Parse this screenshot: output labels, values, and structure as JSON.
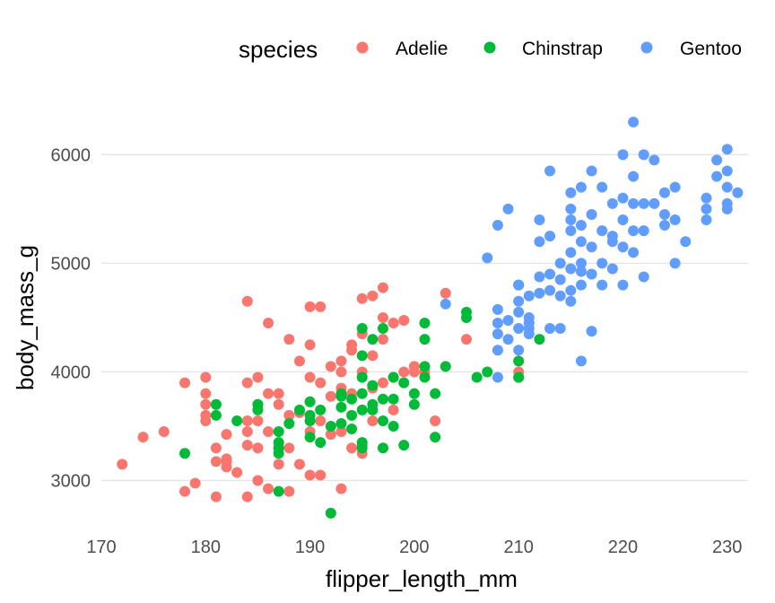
{
  "chart_data": {
    "type": "scatter",
    "title": "",
    "xlabel": "flipper_length_mm",
    "ylabel": "body_mass_g",
    "xlim": [
      170,
      232
    ],
    "ylim": [
      2550,
      6350
    ],
    "x_ticks": [
      170,
      180,
      190,
      200,
      210,
      220,
      230
    ],
    "y_ticks": [
      3000,
      4000,
      5000,
      6000
    ],
    "grid": "horizontal-major",
    "legend": {
      "title": "species",
      "position": "top"
    },
    "series": [
      {
        "name": "Adelie",
        "color": "#F8766D",
        "points": [
          [
            172,
            3150
          ],
          [
            174,
            3400
          ],
          [
            176,
            3450
          ],
          [
            178,
            3900
          ],
          [
            178,
            2900
          ],
          [
            179,
            2975
          ],
          [
            180,
            3950
          ],
          [
            180,
            3800
          ],
          [
            180,
            3700
          ],
          [
            180,
            3600
          ],
          [
            180,
            3550
          ],
          [
            181,
            3300
          ],
          [
            181,
            3175
          ],
          [
            181,
            2850
          ],
          [
            182,
            3175
          ],
          [
            182,
            3125
          ],
          [
            182,
            3200
          ],
          [
            182,
            3425
          ],
          [
            183,
            3075
          ],
          [
            184,
            4650
          ],
          [
            184,
            3900
          ],
          [
            184,
            3550
          ],
          [
            184,
            3450
          ],
          [
            184,
            3325
          ],
          [
            184,
            2850
          ],
          [
            185,
            3950
          ],
          [
            185,
            3700
          ],
          [
            185,
            3550
          ],
          [
            185,
            3300
          ],
          [
            185,
            3000
          ],
          [
            186,
            4450
          ],
          [
            186,
            3800
          ],
          [
            186,
            3450
          ],
          [
            186,
            2925
          ],
          [
            187,
            3800
          ],
          [
            187,
            3700
          ],
          [
            187,
            3150
          ],
          [
            188,
            4300
          ],
          [
            188,
            3600
          ],
          [
            188,
            3300
          ],
          [
            188,
            2900
          ],
          [
            189,
            4100
          ],
          [
            189,
            3625
          ],
          [
            189,
            3150
          ],
          [
            190,
            4600
          ],
          [
            190,
            4250
          ],
          [
            190,
            3950
          ],
          [
            190,
            3725
          ],
          [
            190,
            3450
          ],
          [
            190,
            3050
          ],
          [
            191,
            4600
          ],
          [
            191,
            3900
          ],
          [
            191,
            3550
          ],
          [
            191,
            3050
          ],
          [
            192,
            4050
          ],
          [
            192,
            3775
          ],
          [
            192,
            3425
          ],
          [
            193,
            4000
          ],
          [
            193,
            4100
          ],
          [
            193,
            3850
          ],
          [
            193,
            2925
          ],
          [
            193,
            3450
          ],
          [
            194,
            4250
          ],
          [
            194,
            4200
          ],
          [
            194,
            3800
          ],
          [
            194,
            3300
          ],
          [
            195,
            4675
          ],
          [
            195,
            4350
          ],
          [
            195,
            4000
          ],
          [
            195,
            3250
          ],
          [
            195,
            3325
          ],
          [
            196,
            4700
          ],
          [
            196,
            4150
          ],
          [
            196,
            3850
          ],
          [
            196,
            3550
          ],
          [
            197,
            4775
          ],
          [
            197,
            4500
          ],
          [
            197,
            4300
          ],
          [
            197,
            3900
          ],
          [
            198,
            4450
          ],
          [
            198,
            3950
          ],
          [
            198,
            3650
          ],
          [
            199,
            4475
          ],
          [
            199,
            4000
          ],
          [
            200,
            4050
          ],
          [
            200,
            4000
          ],
          [
            201,
            4000
          ],
          [
            202,
            3550
          ],
          [
            203,
            4725
          ],
          [
            205,
            4300
          ],
          [
            210,
            4000
          ],
          [
            210,
            3950
          ]
        ]
      },
      {
        "name": "Chinstrap",
        "color": "#00BA38",
        "points": [
          [
            178,
            3250
          ],
          [
            181,
            3700
          ],
          [
            181,
            3600
          ],
          [
            183,
            3550
          ],
          [
            185,
            3650
          ],
          [
            185,
            3700
          ],
          [
            187,
            2900
          ],
          [
            187,
            3450
          ],
          [
            187,
            3300
          ],
          [
            187,
            3350
          ],
          [
            187,
            3250
          ],
          [
            188,
            3525
          ],
          [
            189,
            3650
          ],
          [
            190,
            3725
          ],
          [
            190,
            3600
          ],
          [
            190,
            3550
          ],
          [
            190,
            3400
          ],
          [
            191,
            3650
          ],
          [
            191,
            3350
          ],
          [
            192,
            2700
          ],
          [
            192,
            3500
          ],
          [
            193,
            3800
          ],
          [
            193,
            3775
          ],
          [
            193,
            3675
          ],
          [
            193,
            3525
          ],
          [
            194,
            3750
          ],
          [
            194,
            3600
          ],
          [
            194,
            3475
          ],
          [
            195,
            4400
          ],
          [
            195,
            4150
          ],
          [
            195,
            3950
          ],
          [
            195,
            3800
          ],
          [
            195,
            3650
          ],
          [
            195,
            3350
          ],
          [
            195,
            3300
          ],
          [
            196,
            4300
          ],
          [
            196,
            3875
          ],
          [
            196,
            3700
          ],
          [
            196,
            3650
          ],
          [
            197,
            4400
          ],
          [
            197,
            3750
          ],
          [
            197,
            3550
          ],
          [
            197,
            3300
          ],
          [
            198,
            3950
          ],
          [
            198,
            3750
          ],
          [
            198,
            3500
          ],
          [
            199,
            3900
          ],
          [
            199,
            3325
          ],
          [
            200,
            3800
          ],
          [
            200,
            3700
          ],
          [
            201,
            4450
          ],
          [
            201,
            4300
          ],
          [
            201,
            4050
          ],
          [
            201,
            3950
          ],
          [
            202,
            3400
          ],
          [
            202,
            3800
          ],
          [
            203,
            4050
          ],
          [
            205,
            4550
          ],
          [
            205,
            4500
          ],
          [
            206,
            3950
          ],
          [
            207,
            4000
          ],
          [
            210,
            4100
          ],
          [
            210,
            3950
          ],
          [
            210,
            4800
          ],
          [
            212,
            4300
          ]
        ]
      },
      {
        "name": "Gentoo",
        "color": "#619CFF",
        "points": [
          [
            203,
            4625
          ],
          [
            207,
            5050
          ],
          [
            208,
            5350
          ],
          [
            208,
            4575
          ],
          [
            208,
            4450
          ],
          [
            208,
            4350
          ],
          [
            208,
            4200
          ],
          [
            208,
            3950
          ],
          [
            209,
            5500
          ],
          [
            209,
            4475
          ],
          [
            209,
            4300
          ],
          [
            210,
            4800
          ],
          [
            210,
            4650
          ],
          [
            210,
            4550
          ],
          [
            210,
            4400
          ],
          [
            210,
            4200
          ],
          [
            211,
            4700
          ],
          [
            211,
            4500
          ],
          [
            211,
            4450
          ],
          [
            211,
            4400
          ],
          [
            211,
            4350
          ],
          [
            212,
            5400
          ],
          [
            212,
            5200
          ],
          [
            212,
            4875
          ],
          [
            212,
            4725
          ],
          [
            213,
            5850
          ],
          [
            213,
            5250
          ],
          [
            213,
            4900
          ],
          [
            213,
            4750
          ],
          [
            213,
            4400
          ],
          [
            214,
            5000
          ],
          [
            214,
            4850
          ],
          [
            214,
            4700
          ],
          [
            214,
            4400
          ],
          [
            215,
            5650
          ],
          [
            215,
            5500
          ],
          [
            215,
            5400
          ],
          [
            215,
            5300
          ],
          [
            215,
            5100
          ],
          [
            215,
            4950
          ],
          [
            215,
            4750
          ],
          [
            215,
            4650
          ],
          [
            216,
            5700
          ],
          [
            216,
            5350
          ],
          [
            216,
            5200
          ],
          [
            216,
            5000
          ],
          [
            216,
            4925
          ],
          [
            216,
            4800
          ],
          [
            216,
            4100
          ],
          [
            217,
            5850
          ],
          [
            217,
            5450
          ],
          [
            217,
            5150
          ],
          [
            217,
            4900
          ],
          [
            217,
            4375
          ],
          [
            218,
            5700
          ],
          [
            218,
            5300
          ],
          [
            218,
            5000
          ],
          [
            218,
            4800
          ],
          [
            219,
            5550
          ],
          [
            219,
            5250
          ],
          [
            219,
            5200
          ],
          [
            219,
            4950
          ],
          [
            220,
            6000
          ],
          [
            220,
            5600
          ],
          [
            220,
            5400
          ],
          [
            220,
            5150
          ],
          [
            220,
            4800
          ],
          [
            221,
            6300
          ],
          [
            221,
            5800
          ],
          [
            221,
            5550
          ],
          [
            221,
            5300
          ],
          [
            221,
            5100
          ],
          [
            222,
            6000
          ],
          [
            222,
            5550
          ],
          [
            222,
            5300
          ],
          [
            222,
            4875
          ],
          [
            223,
            5950
          ],
          [
            223,
            5550
          ],
          [
            224,
            5650
          ],
          [
            224,
            5450
          ],
          [
            224,
            5350
          ],
          [
            225,
            5700
          ],
          [
            225,
            5400
          ],
          [
            225,
            5000
          ],
          [
            226,
            5200
          ],
          [
            228,
            5600
          ],
          [
            228,
            5500
          ],
          [
            228,
            5400
          ],
          [
            229,
            5950
          ],
          [
            229,
            5800
          ],
          [
            230,
            6050
          ],
          [
            230,
            5850
          ],
          [
            230,
            5700
          ],
          [
            230,
            5550
          ],
          [
            230,
            5500
          ],
          [
            231,
            5650
          ]
        ]
      }
    ]
  }
}
